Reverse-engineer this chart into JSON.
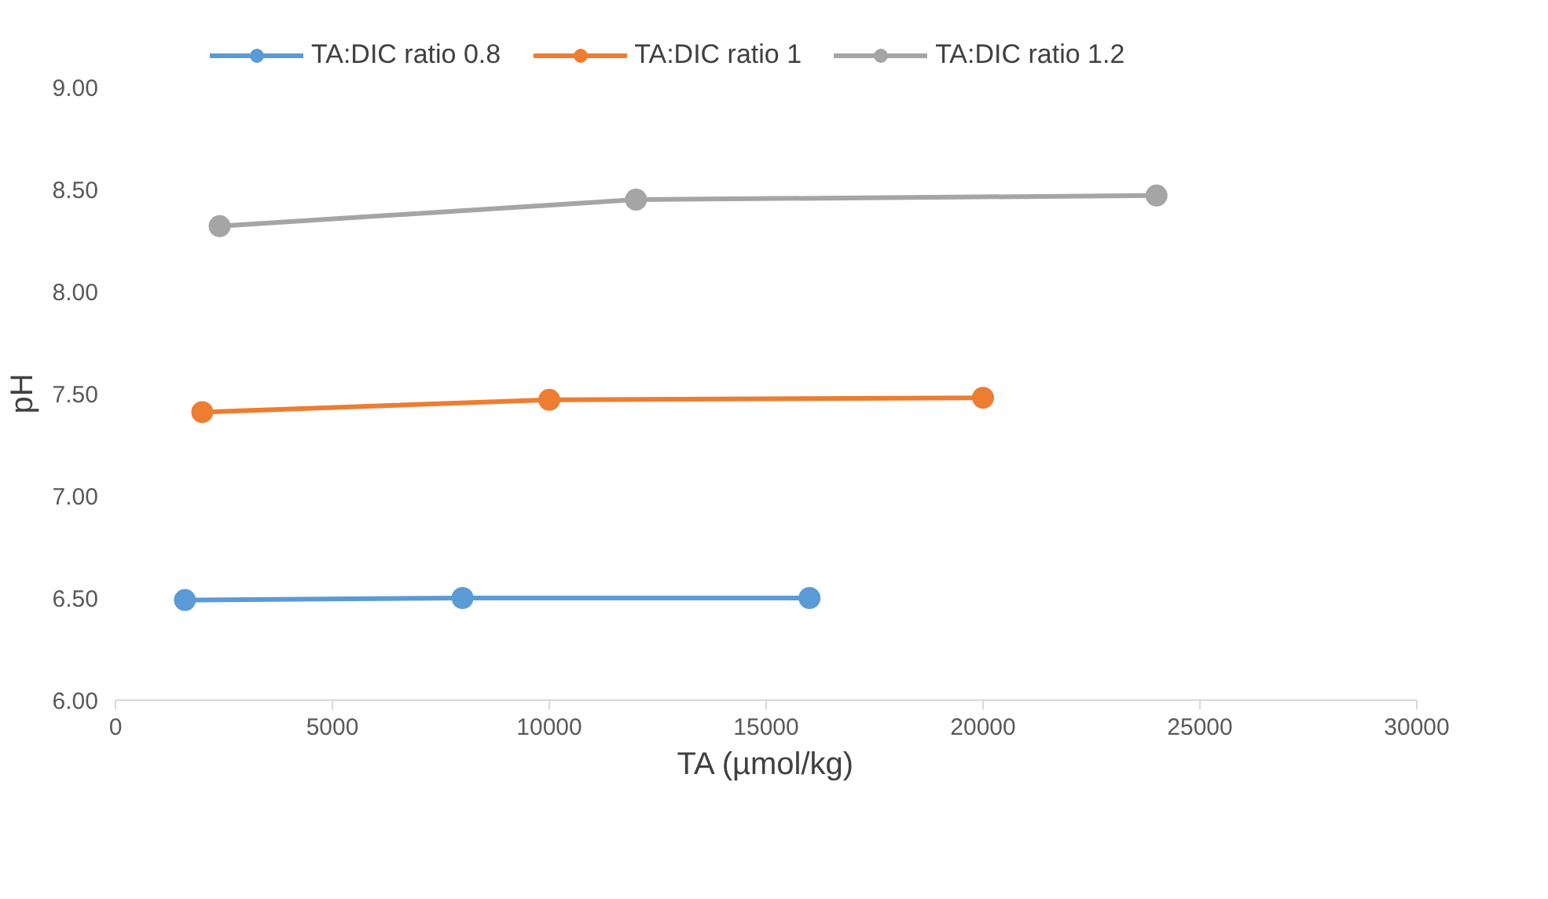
{
  "chart_data": {
    "type": "line",
    "xlabel": "TA (µmol/kg)",
    "ylabel": "pH",
    "series": [
      {
        "name": "TA:DIC ratio 0.8",
        "color": "#5b9bd5",
        "x": [
          1600,
          8000,
          16000
        ],
        "values": [
          6.49,
          6.5,
          6.5
        ]
      },
      {
        "name": "TA:DIC ratio 1",
        "color": "#ed7d31",
        "x": [
          2000,
          10000,
          20000
        ],
        "values": [
          7.41,
          7.47,
          7.48
        ]
      },
      {
        "name": "TA:DIC ratio 1.2",
        "color": "#a5a5a5",
        "x": [
          2400,
          12000,
          24000
        ],
        "values": [
          8.32,
          8.45,
          8.47
        ]
      }
    ],
    "xlim": [
      0,
      30000
    ],
    "xticks": [
      0,
      5000,
      10000,
      15000,
      20000,
      25000,
      30000
    ],
    "ylim": [
      6,
      9
    ],
    "yticks": [
      {
        "value": 6,
        "label": "6.00"
      },
      {
        "value": 6.5,
        "label": "6.50"
      },
      {
        "value": 7,
        "label": "7.00"
      },
      {
        "value": 7.5,
        "label": "7.50"
      },
      {
        "value": 8,
        "label": "8.00"
      },
      {
        "value": 8.5,
        "label": "8.50"
      },
      {
        "value": 9,
        "label": "9.00"
      }
    ],
    "grid": false,
    "legend": "top",
    "marker": "circle",
    "line_style": "solid"
  }
}
